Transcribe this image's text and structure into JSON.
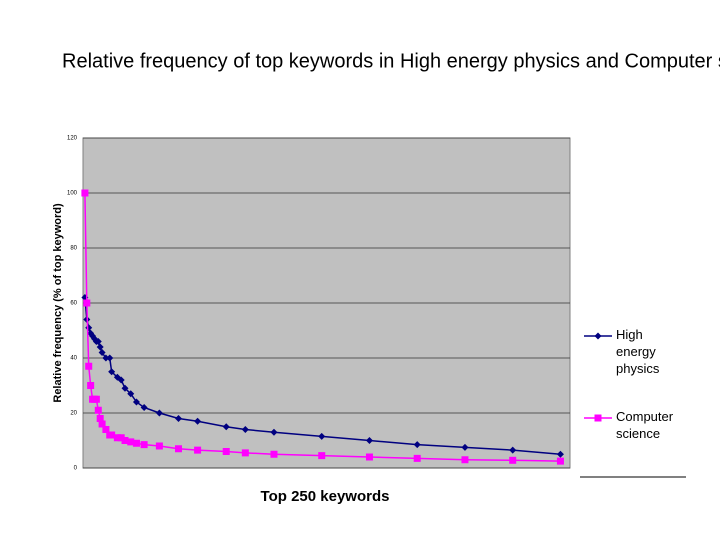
{
  "chart_data": {
    "type": "line",
    "title": "Relative frequency of top keywords in High energy physics and Computer science",
    "x_label": "Top 250 keywords",
    "y_label": "Relative frequency (% of top keyword)",
    "x": [
      1,
      2,
      3,
      4,
      5,
      6,
      7,
      8,
      9,
      10,
      12,
      14,
      15,
      18,
      20,
      22,
      25,
      28,
      32,
      40,
      50,
      60,
      75,
      85,
      100,
      125,
      150,
      175,
      200,
      225,
      250
    ],
    "series": [
      {
        "name": "High energy physics",
        "color": "#000080",
        "marker": "diamond",
        "values": [
          62,
          54,
          51,
          49,
          48,
          47,
          46,
          46,
          44,
          42,
          40,
          40,
          35,
          33,
          32,
          29,
          27,
          24,
          22,
          20,
          18,
          17,
          15,
          14,
          13,
          11.5,
          10,
          8.5,
          7.5,
          6.5,
          5
        ]
      },
      {
        "name": "Computer science",
        "color": "#ff00ff",
        "marker": "square",
        "values": [
          100,
          60,
          37,
          30,
          25,
          25,
          25,
          21,
          18,
          16,
          14,
          12,
          12,
          11,
          11,
          10,
          9.5,
          9,
          8.5,
          8,
          7,
          6.5,
          6,
          5.5,
          5,
          4.5,
          4,
          3.5,
          3,
          2.8,
          2.5
        ]
      }
    ],
    "xlim": [
      0,
      255
    ],
    "ylim": [
      0,
      120
    ],
    "yticks": [
      0,
      20,
      40,
      60,
      80,
      100,
      120
    ],
    "grid": true,
    "plot_background": "#c0c0c0",
    "legend": "right"
  }
}
